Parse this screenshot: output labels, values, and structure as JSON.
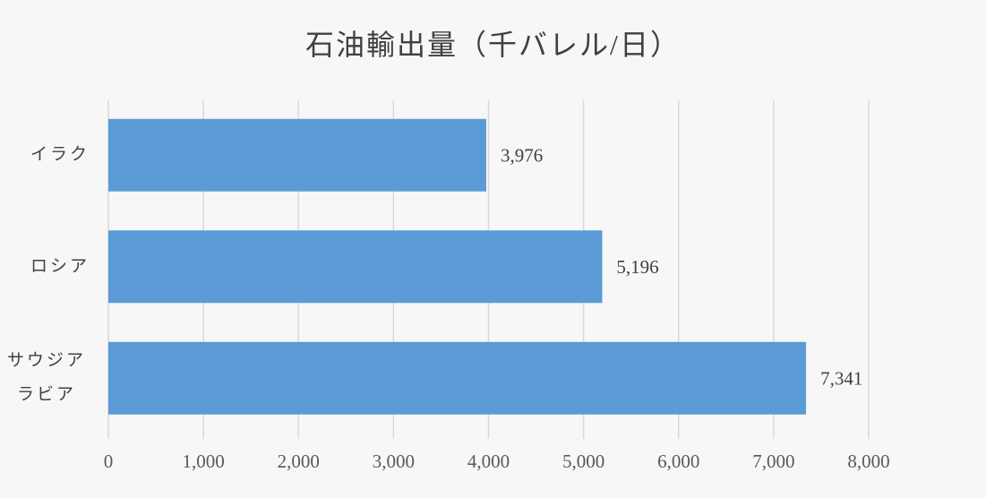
{
  "chart_data": {
    "type": "bar",
    "horizontal": true,
    "title": "石油輸出量（千バレル/日）",
    "categories": [
      "イラク",
      "ロシア",
      "サウジアラビア"
    ],
    "values": [
      3976,
      5196,
      7341
    ],
    "data_labels": [
      "3,976",
      "5,196",
      "7,341"
    ],
    "xlim": [
      0,
      8000
    ],
    "x_ticks": [
      0,
      1000,
      2000,
      3000,
      4000,
      5000,
      6000,
      7000,
      8000
    ],
    "x_tick_labels": [
      "0",
      "1,000",
      "2,000",
      "3,000",
      "4,000",
      "5,000",
      "6,000",
      "7,000",
      "8,000"
    ],
    "grid": true,
    "legend": false
  },
  "colors": {
    "background": "#f7f7f7",
    "bar": "#5b9bd5",
    "grid": "#d9d9d9",
    "text": "#404040",
    "tick_text": "#595959"
  }
}
